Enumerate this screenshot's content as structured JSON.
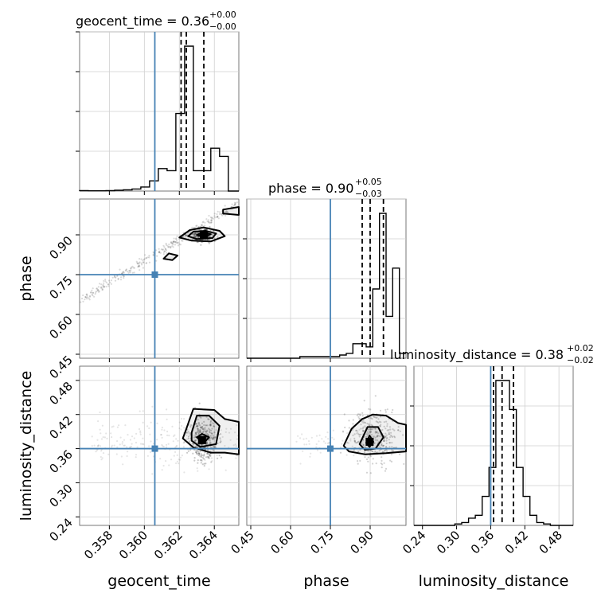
{
  "params": [
    "geocent_time",
    "phase",
    "luminosity_distance"
  ],
  "truths": [
    0.3606,
    0.75,
    0.36
  ],
  "truth_color": "#4682b4",
  "chart_data": {
    "type": "corner",
    "panel_titles": [
      {
        "param": "geocent_time",
        "median": "0.36",
        "plus": "+0.00",
        "minus": "−0.00"
      },
      {
        "param": "phase",
        "median": "0.90",
        "plus": "+0.05",
        "minus": "−0.03"
      },
      {
        "param": "luminosity_distance",
        "median": "0.38",
        "plus": "+0.02",
        "minus": "−0.02"
      }
    ],
    "axes": {
      "geocent_time": {
        "range": [
          0.3563,
          0.3654
        ],
        "ticks": [
          0.358,
          0.36,
          0.362,
          0.364
        ],
        "tick_labels": [
          "0.358",
          "0.360",
          "0.362",
          "0.364"
        ],
        "label": "geocent_time"
      },
      "phase": {
        "range": [
          0.435,
          1.035
        ],
        "ticks": [
          0.45,
          0.6,
          0.75,
          0.9
        ],
        "tick_labels": [
          "0.45",
          "0.60",
          "0.75",
          "0.90"
        ],
        "label": "phase"
      },
      "luminosity_distance": {
        "range": [
          0.225,
          0.505
        ],
        "ticks": [
          0.24,
          0.3,
          0.36,
          0.42,
          0.48
        ],
        "tick_labels": [
          "0.24",
          "0.30",
          "0.36",
          "0.42",
          "0.48"
        ],
        "label": "luminosity_distance"
      }
    },
    "histograms": [
      {
        "param": "geocent_time",
        "edges": [
          0.3563,
          0.3568,
          0.3573,
          0.3578,
          0.3583,
          0.3588,
          0.3593,
          0.3598,
          0.3603,
          0.3608,
          0.3613,
          0.3618,
          0.3623,
          0.3628,
          0.3633,
          0.3638,
          0.3643,
          0.3648,
          0.3654
        ],
        "counts": [
          0.2,
          0.1,
          0.1,
          0.2,
          0.4,
          0.6,
          1,
          2,
          5,
          11,
          10,
          38,
          71,
          10,
          10,
          21,
          17,
          0
        ],
        "quantiles": [
          0.3621,
          0.3624,
          0.3634
        ]
      },
      {
        "param": "phase",
        "edges": [
          0.435,
          0.46,
          0.485,
          0.51,
          0.535,
          0.56,
          0.585,
          0.61,
          0.635,
          0.66,
          0.685,
          0.71,
          0.735,
          0.76,
          0.785,
          0.81,
          0.835,
          0.86,
          0.885,
          0.91,
          0.935,
          0.96,
          0.985,
          1.01,
          1.035
        ],
        "counts": [
          0,
          0,
          0,
          0,
          0,
          0,
          0,
          0,
          1,
          1,
          1,
          1,
          1,
          1,
          2,
          3,
          9,
          9,
          7,
          43,
          90,
          26,
          56,
          3
        ],
        "quantiles": [
          0.87,
          0.9,
          0.95
        ]
      },
      {
        "param": "luminosity_distance",
        "edges": [
          0.225,
          0.237,
          0.249,
          0.261,
          0.273,
          0.285,
          0.297,
          0.309,
          0.321,
          0.333,
          0.345,
          0.357,
          0.369,
          0.381,
          0.393,
          0.405,
          0.417,
          0.429,
          0.441,
          0.453,
          0.465,
          0.477,
          0.489,
          0.505
        ],
        "counts": [
          0,
          0,
          0,
          0,
          0,
          0,
          1,
          2,
          5,
          7,
          20,
          40,
          100,
          100,
          80,
          40,
          20,
          7,
          2,
          1,
          0,
          0,
          0
        ],
        "quantiles": [
          0.365,
          0.38,
          0.4
        ]
      }
    ],
    "pairs": [
      {
        "x": "geocent_time",
        "y": "phase",
        "median": [
          0.3634,
          0.898
        ],
        "contours": [
          [
            [
              0.362,
              0.89
            ],
            [
              0.3626,
              0.918
            ],
            [
              0.3634,
              0.928
            ],
            [
              0.3643,
              0.915
            ],
            [
              0.3646,
              0.895
            ],
            [
              0.3638,
              0.875
            ],
            [
              0.3627,
              0.878
            ]
          ],
          [
            [
              0.3625,
              0.895
            ],
            [
              0.3628,
              0.912
            ],
            [
              0.3635,
              0.915
            ],
            [
              0.3641,
              0.905
            ],
            [
              0.3639,
              0.888
            ],
            [
              0.363,
              0.884
            ]
          ],
          [
            [
              0.363,
              0.9
            ],
            [
              0.3634,
              0.91
            ],
            [
              0.3638,
              0.902
            ],
            [
              0.3634,
              0.892
            ]
          ],
          [
            [
              0.3611,
              0.81
            ],
            [
              0.3614,
              0.83
            ],
            [
              0.3619,
              0.822
            ],
            [
              0.3616,
              0.805
            ]
          ],
          [
            [
              0.3645,
              0.995
            ],
            [
              0.3654,
              1.005
            ],
            [
              0.3654,
              0.975
            ],
            [
              0.3645,
              0.98
            ]
          ]
        ]
      },
      {
        "x": "geocent_time",
        "y": "luminosity_distance",
        "median": [
          0.3633,
          0.375
        ],
        "contours": [
          [
            [
              0.3624,
              0.395
            ],
            [
              0.3628,
              0.43
            ],
            [
              0.364,
              0.428
            ],
            [
              0.3646,
              0.412
            ],
            [
              0.3654,
              0.407
            ],
            [
              0.3654,
              0.35
            ],
            [
              0.3646,
              0.353
            ],
            [
              0.3638,
              0.353
            ],
            [
              0.3628,
              0.362
            ],
            [
              0.3622,
              0.378
            ]
          ],
          [
            [
              0.3627,
              0.388
            ],
            [
              0.363,
              0.418
            ],
            [
              0.3637,
              0.418
            ],
            [
              0.3643,
              0.4
            ],
            [
              0.3641,
              0.368
            ],
            [
              0.3632,
              0.363
            ],
            [
              0.3627,
              0.374
            ]
          ],
          [
            [
              0.363,
              0.38
            ],
            [
              0.3633,
              0.386
            ],
            [
              0.3637,
              0.38
            ],
            [
              0.3634,
              0.37
            ]
          ]
        ]
      },
      {
        "x": "phase",
        "y": "luminosity_distance",
        "median": [
          0.898,
          0.372
        ],
        "contours": [
          [
            [
              0.8,
              0.365
            ],
            [
              0.83,
              0.395
            ],
            [
              0.87,
              0.412
            ],
            [
              0.91,
              0.42
            ],
            [
              0.96,
              0.418
            ],
            [
              1.005,
              0.405
            ],
            [
              1.035,
              0.402
            ],
            [
              1.035,
              0.355
            ],
            [
              0.96,
              0.352
            ],
            [
              0.88,
              0.35
            ],
            [
              0.82,
              0.355
            ]
          ],
          [
            [
              0.86,
              0.368
            ],
            [
              0.89,
              0.398
            ],
            [
              0.93,
              0.398
            ],
            [
              0.95,
              0.38
            ],
            [
              0.92,
              0.36
            ],
            [
              0.88,
              0.358
            ]
          ],
          [
            [
              0.885,
              0.37
            ],
            [
              0.898,
              0.383
            ],
            [
              0.912,
              0.372
            ],
            [
              0.898,
              0.363
            ]
          ]
        ]
      }
    ]
  }
}
